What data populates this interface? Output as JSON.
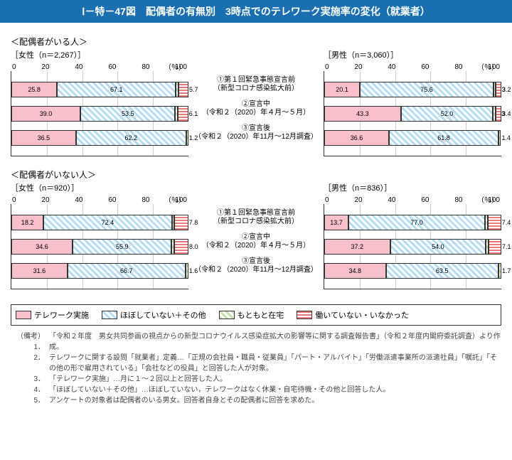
{
  "header": "Ⅰ－特－47図　配偶者の有無別　3時点でのテレワーク実施率の変化（就業者）",
  "section1_title": "＜配偶者がいる人＞",
  "section2_title": "＜配偶者がいない人＞",
  "axis_ticks": [
    "0",
    "20",
    "40",
    "60",
    "80",
    "100"
  ],
  "pct_label": "（％）",
  "period_labels": [
    {
      "t": "①第１回緊急事態宣言前",
      "s": "（新型コロナ感染拡大前）"
    },
    {
      "t": "②宣言中",
      "s": "（令和２（2020）年４月～５月）"
    },
    {
      "t": "③宣言後",
      "s": "（令和２（2020）年11月～12月調査）"
    }
  ],
  "panels": {
    "p1": {
      "sub": "［女性（n＝2,267）］",
      "rows": [
        {
          "segs": [
            25.8,
            67.1,
            1.4,
            5.7
          ]
        },
        {
          "segs": [
            39.0,
            53.5,
            1.3,
            6.1
          ]
        },
        {
          "segs": [
            36.5,
            62.2,
            1.2,
            0
          ]
        }
      ]
    },
    "p2": {
      "sub": "［男性（n＝3,060）］",
      "rows": [
        {
          "segs": [
            20.1,
            75.6,
            1.3,
            3.2
          ]
        },
        {
          "segs": [
            43.3,
            52.0,
            1.3,
            3.4
          ]
        },
        {
          "segs": [
            36.6,
            61.8,
            1.4,
            0
          ]
        }
      ]
    },
    "p3": {
      "sub": "［女性（n＝920）］",
      "rows": [
        {
          "segs": [
            18.2,
            72.4,
            1.5,
            7.8
          ]
        },
        {
          "segs": [
            34.6,
            55.9,
            1.5,
            8.0
          ]
        },
        {
          "segs": [
            31.6,
            66.7,
            1.6,
            0
          ]
        }
      ]
    },
    "p4": {
      "sub": "［男性（n＝836）］",
      "rows": [
        {
          "segs": [
            13.7,
            77.0,
            1.8,
            7.4
          ]
        },
        {
          "segs": [
            37.2,
            54.0,
            1.7,
            7.1
          ]
        },
        {
          "segs": [
            34.8,
            63.5,
            1.7,
            0
          ]
        }
      ]
    }
  },
  "legend": [
    {
      "cls": "seg-pink",
      "label": "テレワーク実施"
    },
    {
      "cls": "seg-blue",
      "label": "ほぼしていない＋その他"
    },
    {
      "cls": "seg-green",
      "label": "もともと在宅"
    },
    {
      "cls": "seg-red",
      "label": "働いていない・いなかった"
    }
  ],
  "notes_head": "（備考）",
  "notes": [
    "「令和２年度　男女共同参画の視点からの新型コロナウイルス感染症拡大の影響等に関する調査報告書」（令和２年度内閣府委託調査）より作成。",
    "テレワークに関する設問「就業者」定義…「正規の会社員・職員・従業員」「パート・アルバイト」「労働派遣事業所の派遣社員」「嘱託」「その他の形で雇用されている」「会社などの役員」と回答した人が対象。",
    "「テレワーク実施」…月に１～２回以上と回答した人。",
    "「ほぼしていない＋その他」…ほぼしていない，テレワークはなく休業・自宅待機・その他と回答した人。",
    "アンケートの対象者は配偶者のいる男女。回答者自身とその配偶者に回答を求めた。"
  ]
}
